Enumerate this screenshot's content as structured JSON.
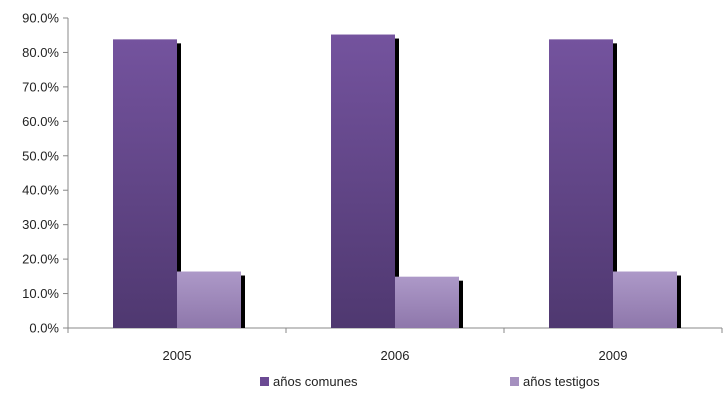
{
  "chart_data": {
    "type": "bar",
    "categories": [
      "2005",
      "2006",
      "2009"
    ],
    "series": [
      {
        "name": "años comunes",
        "values": [
          83.8,
          85.2,
          83.8
        ],
        "color": "#6b4a93"
      },
      {
        "name": "años testigos",
        "values": [
          16.4,
          14.9,
          16.4
        ],
        "color": "#a590bf"
      }
    ],
    "ylim": [
      0,
      90
    ],
    "yticks": [
      "0.0%",
      "10.0%",
      "20.0%",
      "30.0%",
      "40.0%",
      "50.0%",
      "60.0%",
      "70.0%",
      "80.0%",
      "90.0%"
    ],
    "ytick_values": [
      0,
      10,
      20,
      30,
      40,
      50,
      60,
      70,
      80,
      90
    ],
    "legend_position": "bottom",
    "grid": false
  }
}
